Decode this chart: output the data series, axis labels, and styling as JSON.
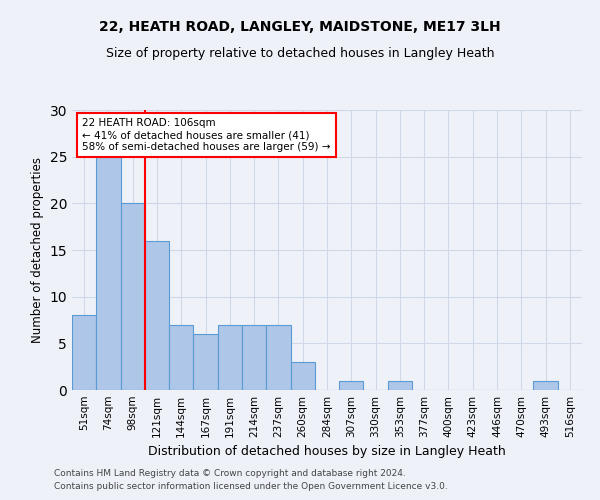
{
  "title1": "22, HEATH ROAD, LANGLEY, MAIDSTONE, ME17 3LH",
  "title2": "Size of property relative to detached houses in Langley Heath",
  "xlabel": "Distribution of detached houses by size in Langley Heath",
  "ylabel": "Number of detached properties",
  "categories": [
    "51sqm",
    "74sqm",
    "98sqm",
    "121sqm",
    "144sqm",
    "167sqm",
    "191sqm",
    "214sqm",
    "237sqm",
    "260sqm",
    "284sqm",
    "307sqm",
    "330sqm",
    "353sqm",
    "377sqm",
    "400sqm",
    "423sqm",
    "446sqm",
    "470sqm",
    "493sqm",
    "516sqm"
  ],
  "values": [
    8,
    25,
    20,
    16,
    7,
    6,
    7,
    7,
    7,
    3,
    0,
    1,
    0,
    1,
    0,
    0,
    0,
    0,
    0,
    1,
    0
  ],
  "bar_color": "#aec6e8",
  "bar_edge_color": "#5b9bd5",
  "grid_color": "#d0d8e8",
  "reference_line_index": 2,
  "reference_line_color": "red",
  "annotation_text": "22 HEATH ROAD: 106sqm\n← 41% of detached houses are smaller (41)\n58% of semi-detached houses are larger (59) →",
  "annotation_box_color": "white",
  "annotation_box_edge_color": "red",
  "ylim": [
    0,
    30
  ],
  "yticks": [
    0,
    5,
    10,
    15,
    20,
    25,
    30
  ],
  "footer1": "Contains HM Land Registry data © Crown copyright and database right 2024.",
  "footer2": "Contains public sector information licensed under the Open Government Licence v3.0.",
  "background_color": "#eef2f8"
}
